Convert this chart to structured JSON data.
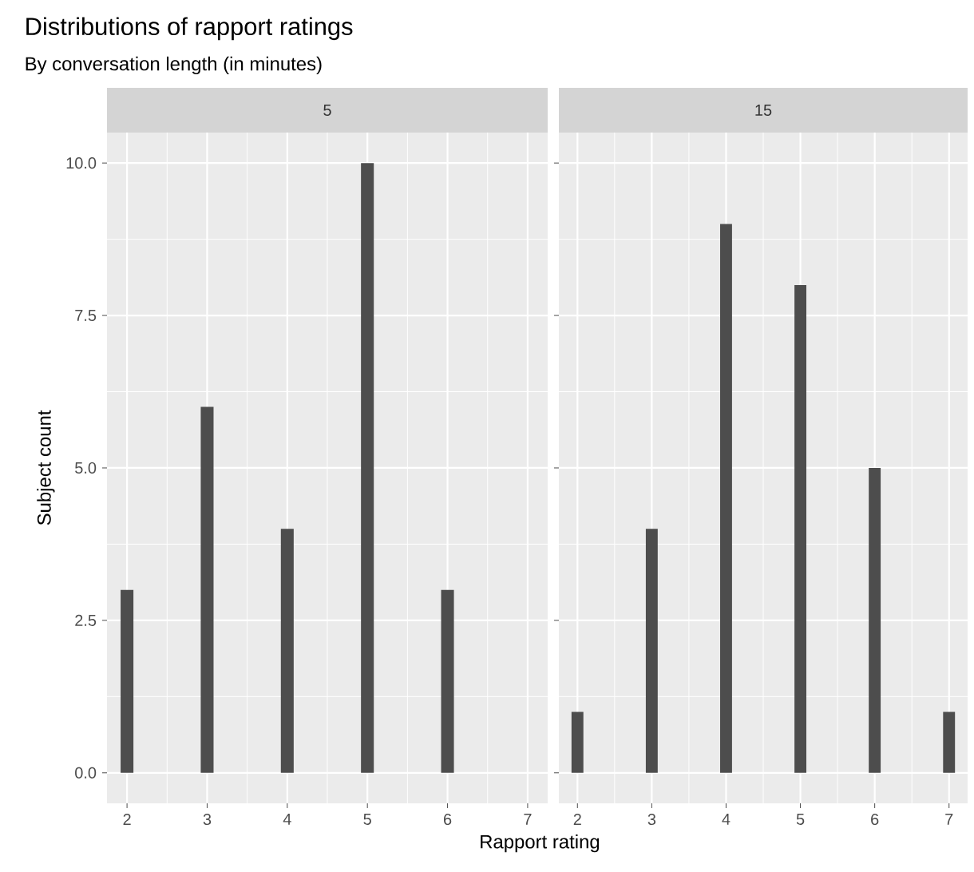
{
  "chart_data": [
    {
      "type": "bar",
      "title": "Distributions of rapport ratings",
      "subtitle": "By conversation length (in minutes)",
      "annotations": [
        "5"
      ],
      "ylabel": "Subject count",
      "x": [
        2,
        3,
        4,
        5,
        6
      ],
      "values": [
        3,
        6,
        4,
        10,
        3
      ],
      "color": "#4d4d4d",
      "xlim": [
        1.75,
        7.25
      ],
      "ylim": [
        -0.5,
        10.5
      ],
      "xticks": [
        2,
        3,
        4,
        5,
        6,
        7
      ],
      "yticks": [
        {
          "value": 0,
          "label": "0.0"
        },
        {
          "value": 2.5,
          "label": "2.5"
        },
        {
          "value": 5,
          "label": "5.0"
        },
        {
          "value": 7.5,
          "label": "7.5"
        },
        {
          "value": 10,
          "label": "10.0"
        }
      ],
      "grid": true
    },
    {
      "type": "bar",
      "annotations": [
        "15"
      ],
      "xlabel": "Rapport rating",
      "x": [
        2,
        3,
        4,
        5,
        6,
        7
      ],
      "values": [
        1,
        4,
        9,
        8,
        5,
        1
      ],
      "color": "#4d4d4d",
      "xlim": [
        1.75,
        7.25
      ],
      "ylim": [
        -0.5,
        10.5
      ],
      "xticks": [
        2,
        3,
        4,
        5,
        6,
        7
      ],
      "yticks": [
        {
          "value": 0,
          "label": null
        },
        {
          "value": 2.5,
          "label": null
        },
        {
          "value": 5,
          "label": null
        },
        {
          "value": 7.5,
          "label": null
        },
        {
          "value": 10,
          "label": null
        }
      ],
      "grid": true,
      "tick_labels": "x"
    }
  ]
}
